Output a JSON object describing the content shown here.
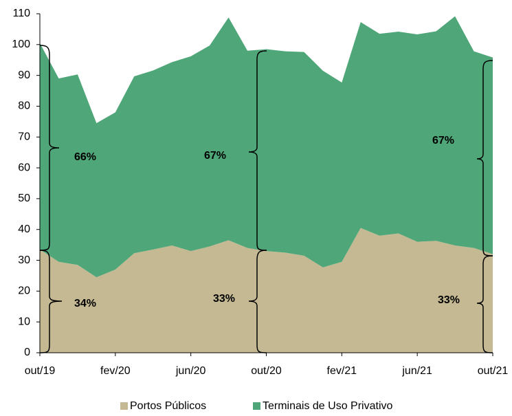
{
  "chart_data": {
    "type": "stacked_area",
    "categories": [
      "out/19",
      null,
      null,
      null,
      "fev/20",
      null,
      null,
      null,
      "jun/20",
      null,
      null,
      null,
      "out/20",
      null,
      null,
      null,
      "fev/21",
      null,
      null,
      null,
      "jun/21",
      null,
      null,
      null,
      "out/21"
    ],
    "series": [
      {
        "name": "Portos Públicos",
        "color": "#c4b992",
        "values": [
          33.5,
          29.5,
          28.5,
          24.5,
          27,
          32.3,
          33.5,
          34.8,
          33,
          34.5,
          36.5,
          34,
          33,
          32.5,
          31.5,
          27.7,
          29.5,
          40.5,
          38,
          38.7,
          36,
          36.3,
          34.8,
          34,
          32
        ]
      },
      {
        "name": "Terminais de Uso Privativo",
        "color": "#4fa678",
        "values": [
          67,
          59.5,
          61.8,
          50,
          51,
          57.4,
          58.1,
          59.5,
          63.2,
          65.2,
          72.3,
          64,
          65.5,
          65.3,
          66.1,
          63.8,
          58.2,
          66.8,
          65.5,
          65.5,
          67.3,
          68,
          74.4,
          63.8,
          63.8
        ]
      }
    ],
    "ylim": [
      0,
      110
    ],
    "yticks": [
      0,
      10,
      20,
      30,
      40,
      50,
      60,
      70,
      80,
      90,
      100,
      110
    ],
    "annotations": [
      "66%",
      "34%",
      "67%",
      "33%",
      "67%",
      "33%"
    ]
  }
}
